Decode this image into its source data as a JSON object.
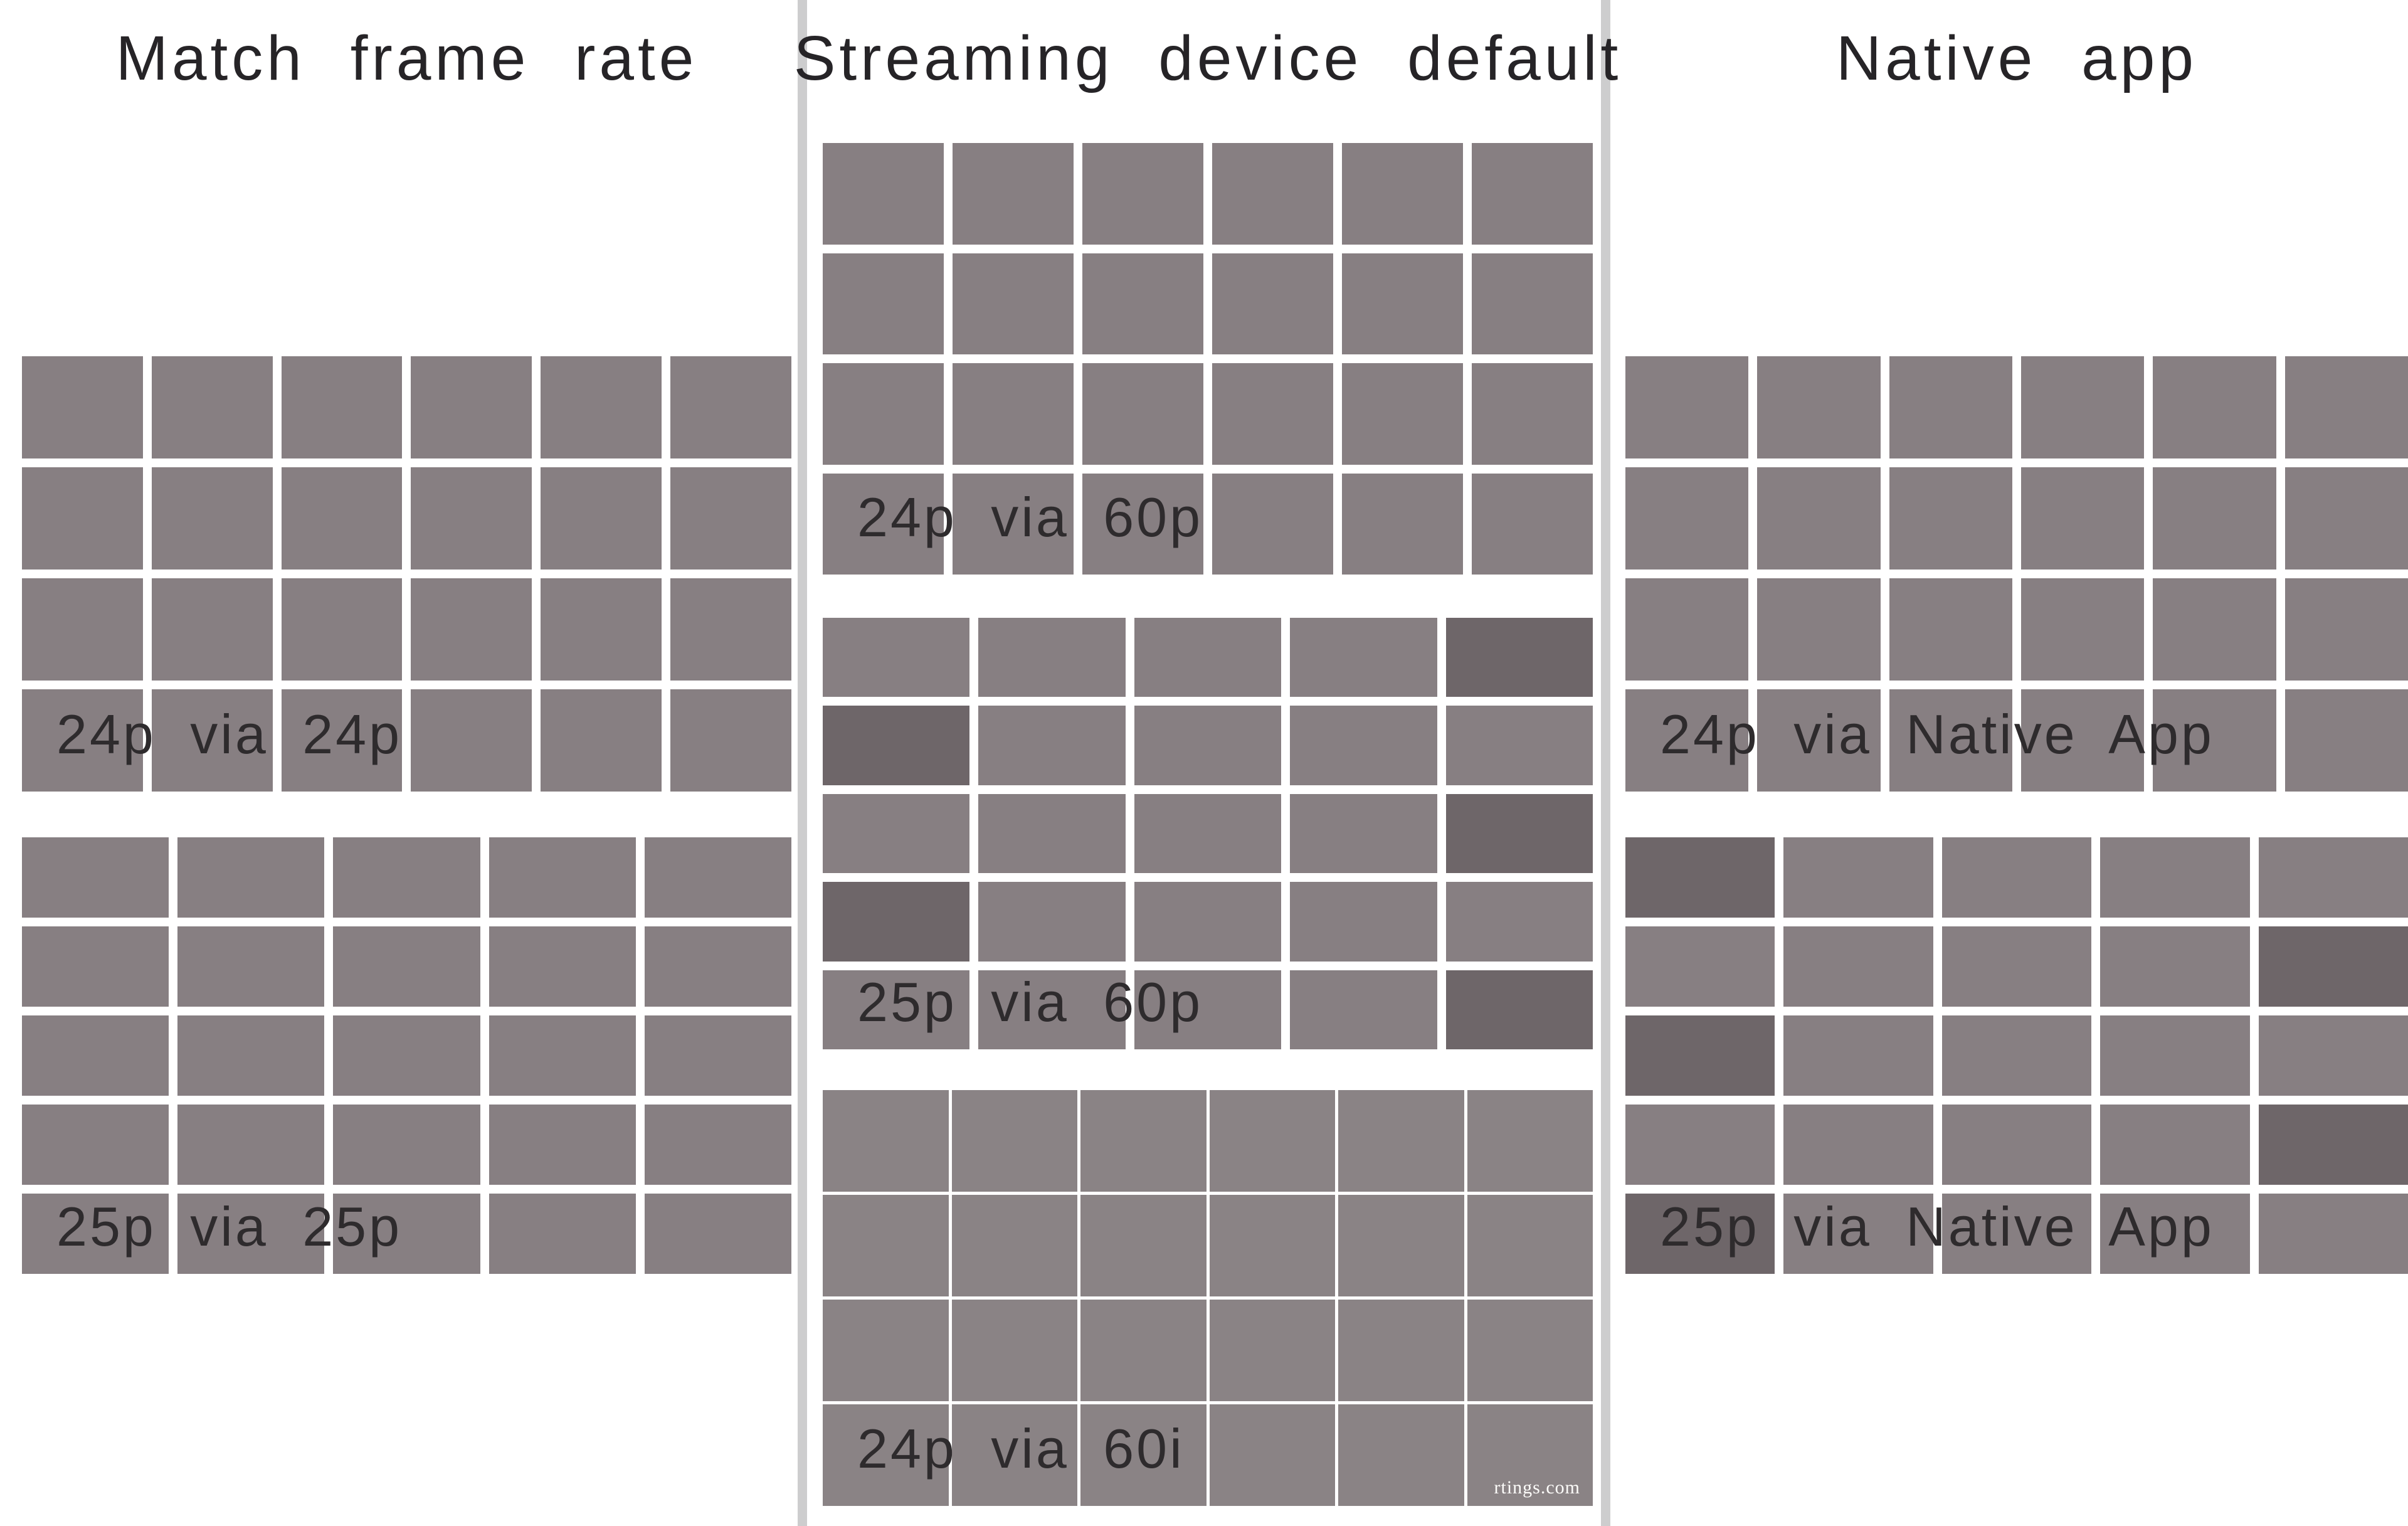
{
  "watermark": "rtings.com",
  "colors": {
    "background": "#ffffff",
    "separator": "#cdcdce",
    "title_text": "#262427",
    "label_text": "#2e2b2d",
    "cell_normal": "#877f82",
    "cell_dark": "#6e6669",
    "cell_60i": "#8a8385",
    "grid_line": "#ffffff",
    "watermark_text": "#fdfcfa"
  },
  "columns": [
    {
      "title": "Match frame rate",
      "grids": [
        {
          "label": "24p via 24p",
          "cols": 6,
          "rows": 4,
          "line_style": "thick",
          "dark_cells": []
        },
        {
          "label": "25p via 25p",
          "cols": 5,
          "rows": 5,
          "line_style": "thick",
          "dark_cells": []
        }
      ]
    },
    {
      "title": "Streaming device default",
      "grids": [
        {
          "label": "24p via 60p",
          "cols": 6,
          "rows": 4,
          "line_style": "thick",
          "dark_cells": []
        },
        {
          "label": "25p via 60p",
          "cols": 5,
          "rows": 5,
          "line_style": "thick",
          "dark_cells": [
            [
              1,
              5
            ],
            [
              2,
              1
            ],
            [
              3,
              5
            ],
            [
              4,
              1
            ],
            [
              5,
              5
            ]
          ]
        },
        {
          "label": "24p via 60i",
          "cols": 6,
          "rows": 4,
          "line_style": "thin",
          "dark_cells": [],
          "watermark": true
        }
      ]
    },
    {
      "title": "Native app",
      "grids": [
        {
          "label": "24p via Native App",
          "cols": 6,
          "rows": 4,
          "line_style": "thick",
          "dark_cells": []
        },
        {
          "label": "25p via Native App",
          "cols": 5,
          "rows": 5,
          "line_style": "thick",
          "dark_cells": [
            [
              1,
              1
            ],
            [
              2,
              5
            ],
            [
              3,
              1
            ],
            [
              4,
              5
            ],
            [
              5,
              1
            ]
          ]
        }
      ]
    }
  ]
}
